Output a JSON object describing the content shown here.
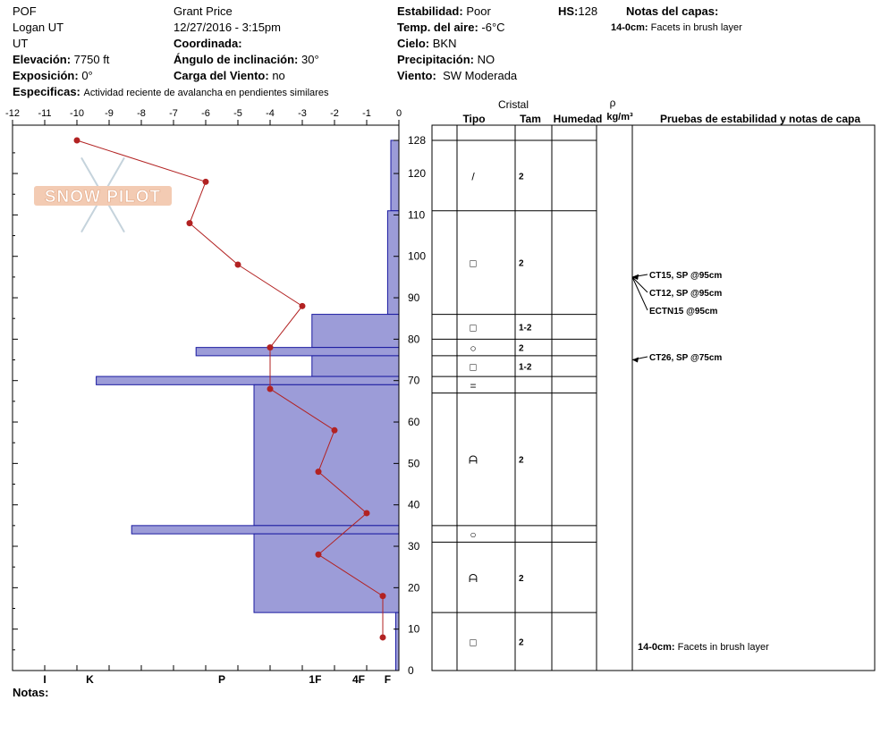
{
  "header": {
    "site": "POF",
    "location": "Logan UT",
    "state": "UT",
    "observer": "Grant  Price",
    "datetime": "12/27/2016 - 3:15pm",
    "elevation_label": "Elevación:",
    "elevation": "7750 ft",
    "aspect_label": "Exposición:",
    "aspect": "0°",
    "coords_label": "Coordinada:",
    "slope_label": "Ángulo de inclinación:",
    "slope": "30°",
    "wind_load_label": "Carga del Viento:",
    "wind_load": "no",
    "stability_label": "Estabilidad:",
    "stability": "Poor",
    "air_temp_label": "Temp. del aire:",
    "air_temp": "-6°C",
    "sky_label": "Cielo:",
    "sky": "BKN",
    "precip_label": "Precipitación:",
    "precip": "NO",
    "wind_label": "Viento:",
    "wind": "SW Moderada",
    "hs_label": "HS:",
    "hs": "128",
    "layer_notes_label": "Notas del capas:",
    "layer_note": "14-0cm:  Facets in brush layer",
    "specifics_label": "Especificas:",
    "specifics": "Actividad reciente de avalancha en pendientes similares",
    "notes_label": "Notas:"
  },
  "logo_text": "SNOW PILOT",
  "columns": {
    "crystal": "Cristal",
    "type": "Tipo",
    "size": "Tam",
    "moisture": "Humedad",
    "rho": "ρ",
    "density": "kg/m³",
    "tests": "Pruebas de estabilidad y notas de capa"
  },
  "chart_data": {
    "type": "snow-profile",
    "temperature_axis": {
      "ticks": [
        -12,
        -11,
        -10,
        -9,
        -8,
        -7,
        -6,
        -5,
        -4,
        -3,
        -2,
        -1,
        0
      ],
      "range": [
        -12,
        0
      ]
    },
    "depth_axis": {
      "ticks": [
        0,
        10,
        20,
        30,
        40,
        50,
        60,
        70,
        80,
        90,
        100,
        110,
        120,
        128
      ],
      "range": [
        0,
        128
      ]
    },
    "hardness_axis": {
      "labels": [
        "I",
        "K",
        "P",
        "1F",
        "4F",
        "F"
      ],
      "values": [
        -11,
        -9.6,
        -5.5,
        -2.6,
        -1.25,
        -0.35
      ]
    },
    "temperature_profile": [
      {
        "depth": 128,
        "temp": -10
      },
      {
        "depth": 118,
        "temp": -6
      },
      {
        "depth": 108,
        "temp": -6.5
      },
      {
        "depth": 98,
        "temp": -5
      },
      {
        "depth": 88,
        "temp": -3
      },
      {
        "depth": 78,
        "temp": -4
      },
      {
        "depth": 68,
        "temp": -4
      },
      {
        "depth": 58,
        "temp": -2
      },
      {
        "depth": 48,
        "temp": -2.5
      },
      {
        "depth": 38,
        "temp": -1
      },
      {
        "depth": 28,
        "temp": -2.5
      },
      {
        "depth": 18,
        "temp": -0.5
      },
      {
        "depth": 8,
        "temp": -0.5
      }
    ],
    "hardness_profile": [
      {
        "top": 128,
        "bottom": 111,
        "hardness": -0.25
      },
      {
        "top": 111,
        "bottom": 86,
        "hardness": -0.35
      },
      {
        "top": 86,
        "bottom": 78,
        "hardness": -2.7
      },
      {
        "top": 78,
        "bottom": 76,
        "hardness": -6.3
      },
      {
        "top": 76,
        "bottom": 71,
        "hardness": -2.7
      },
      {
        "top": 71,
        "bottom": 69,
        "hardness": -9.4
      },
      {
        "top": 69,
        "bottom": 35,
        "hardness": -4.5
      },
      {
        "top": 35,
        "bottom": 33,
        "hardness": -8.3
      },
      {
        "top": 33,
        "bottom": 14,
        "hardness": -4.5
      },
      {
        "top": 14,
        "bottom": 0,
        "hardness": -0.1
      }
    ],
    "layers": [
      {
        "top": 128,
        "bottom": 111,
        "type": "/",
        "size": "2"
      },
      {
        "top": 111,
        "bottom": 86,
        "type": "□",
        "size": "2"
      },
      {
        "top": 86,
        "bottom": 80,
        "type": "□",
        "size": "1-2"
      },
      {
        "top": 80,
        "bottom": 76,
        "type": "○",
        "size": "2"
      },
      {
        "top": 76,
        "bottom": 71,
        "type": "□",
        "size": "1-2"
      },
      {
        "top": 71,
        "bottom": 67,
        "type": "=",
        "size": ""
      },
      {
        "top": 67,
        "bottom": 35,
        "type": "ᗩ",
        "size": "2"
      },
      {
        "top": 35,
        "bottom": 31,
        "type": "○",
        "size": ""
      },
      {
        "top": 31,
        "bottom": 14,
        "type": "ᗩ",
        "size": "2"
      },
      {
        "top": 14,
        "bottom": 0,
        "type": "□",
        "size": "2"
      }
    ],
    "tests": [
      {
        "depth": 95,
        "label": "CT15, SP @95cm"
      },
      {
        "depth": 95,
        "label": "CT12, SP @95cm"
      },
      {
        "depth": 95,
        "label": "ECTN15 @95cm"
      },
      {
        "depth": 75,
        "label": "CT26, SP @75cm"
      }
    ],
    "layer_note": {
      "depth": 7,
      "label": "14-0cm:",
      "text": "Facets in brush layer"
    }
  }
}
